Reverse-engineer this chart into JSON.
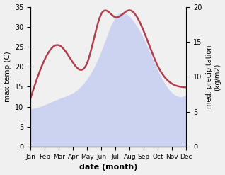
{
  "months": [
    "Jan",
    "Feb",
    "Mar",
    "Apr",
    "May",
    "Jun",
    "Jul",
    "Aug",
    "Sep",
    "Oct",
    "Nov",
    "Dec"
  ],
  "temp": [
    9.5,
    10.5,
    12.0,
    13.5,
    17.0,
    24.0,
    32.5,
    32.5,
    27.0,
    19.0,
    13.5,
    13.0
  ],
  "precip": [
    7.0,
    12.5,
    14.5,
    12.0,
    12.0,
    19.0,
    18.5,
    19.5,
    16.5,
    11.5,
    9.0,
    8.5
  ],
  "temp_fill_color": "#c8d0f0",
  "precip_color": "#b04050",
  "xlabel": "date (month)",
  "ylabel_left": "max temp (C)",
  "ylabel_right": "med. precipitation\n(kg/m2)",
  "ylim_left": [
    0,
    35
  ],
  "ylim_right": [
    0,
    20
  ],
  "yticks_left": [
    0,
    5,
    10,
    15,
    20,
    25,
    30,
    35
  ],
  "yticks_right": [
    0,
    5,
    10,
    15,
    20
  ],
  "background_color": "#f0f0f0"
}
